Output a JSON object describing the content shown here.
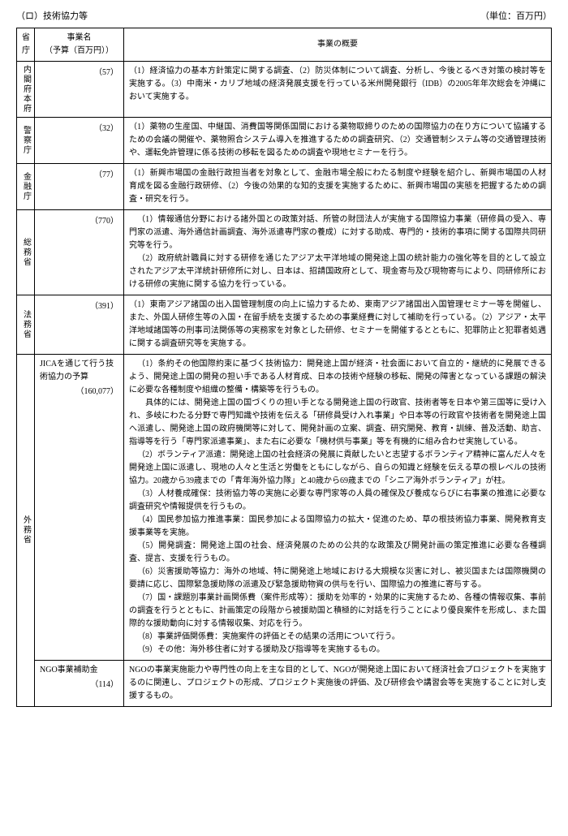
{
  "header": {
    "section_label": "（ロ）技術協力等",
    "unit_label": "（単位：百万円）"
  },
  "columns": {
    "ministry": "省庁",
    "project": "事業名\n（予算（百万円））",
    "summary": "事業の概要"
  },
  "rows": [
    {
      "ministry": "内閣府本府",
      "budget": "（57）",
      "desc": "（1）経済協力の基本方針策定に関する調査、（2）防災体制について調査、分析し、今後とるべき対策の検討等を実施する。（3）中南米・カリブ地域の経済発展支援を行っている米州開発銀行（IDB）の2005年年次総会を沖縄において実施する。"
    },
    {
      "ministry": "警察庁",
      "budget": "（32）",
      "desc": "（1）薬物の生産国、中継国、消費国等関係国間における薬物取締りのための国際協力の在り方について協議するための会議の開催や、薬物照合システム導入を推進するための調査研究、（2）交通管制システム等の交通管理技術や、運転免許管理に係る技術の移転を図るための調査や現地セミナーを行う。"
    },
    {
      "ministry": "金融庁",
      "budget": "（77）",
      "desc": "（1）新興市場国の金融行政担当者を対象として、金融市場全般にわたる制度や経験を紹介し、新興市場国の人材育成を図る金融行政研修、（2）今後の効果的な知的支援を実施するために、新興市場国の実態を把握するための調査・研究を行う。"
    },
    {
      "ministry": "総務省",
      "budget": "（770）",
      "desc_multi": [
        "（1）情報通信分野における諸外国との政策対話、所管の財団法人が実施する国際協力事業（研修員の受入、専門家の派遣、海外通信計画調査、海外派遣専門家の養成）に対する助成、専門的・技術的事項に関する国際共同研究等を行う。",
        "（2）政府統計職員に対する研修を通じたアジア太平洋地域の開発途上国の統計能力の強化等を目的として設立されたアジア太平洋統計研修所に対し、日本は、招請国政府として、現金寄与及び現物寄与により、同研修所における研修の実施に関する協力を行っている。"
      ]
    },
    {
      "ministry": "法務省",
      "budget": "（391）",
      "desc": "（1）東南アジア諸国の出入国管理制度の向上に協力するため、東南アジア諸国出入国管理セミナー等を開催し、また、外国人研修生等の入国・在留手続を支援するための事業経費に対して補助を行っている。（2）アジア・太平洋地域諸国等の刑事司法関係等の実務家を対象とした研修、セミナーを開催するとともに、犯罪防止と犯罪者処遇に関する調査研究等を実施する。"
    },
    {
      "ministry": "外務省",
      "sub": [
        {
          "name": "JICAを通じて行う技術協力の予算",
          "budget": "（160,077）",
          "desc_multi": [
            "（1）条約その他国際約束に基づく技術協力：開発途上国が経済・社会面において自立的・継続的に発展できるよう、開発途上国の開発の担い手である人材育成、日本の技術や経験の移転、開発の障害となっている課題の解決に必要な各種制度や組織の整備・構築等を行うもの。",
            "　具体的には、開発途上国の国づくりの担い手となる開発途上国の行政官、技術者等を日本や第三国等に受け入れ、多岐にわたる分野で専門知識や技術を伝える「研修員受け入れ事業」や日本等の行政官や技術者を開発途上国へ派遣し、開発途上国の政府機関等に対して、開発計画の立案、調査、研究開発、教育・訓練、普及活動、助言、指導等を行う「専門家派遣事業」、また右に必要な「機材供与事業」等を有機的に組み合わせ実施している。",
            "（2）ボランティア派遣：開発途上国の社会経済の発展に貢献したいと志望するボランティア精神に富んだ人々を開発途上国に派遣し、現地の人々と生活と労働をともにしながら、自らの知識と経験を伝える草の根レベルの技術協力。20歳から39歳までの「青年海外協力隊」と40歳から69歳までの「シニア海外ボランティア」が柱。",
            "（3）人材養成確保：技術協力等の実施に必要な専門家等の人員の確保及び養成ならびに右事業の推進に必要な調査研究や情報提供を行うもの。",
            "（4）国民参加協力推進事業：国民参加による国際協力の拡大・促進のため、草の根技術協力事業、開発教育支援事業等を実施。",
            "（5）開発調査：開発途上国の社会、経済発展のための公共的な政策及び開発計画の策定推進に必要な各種調査、提言、支援を行うもの。",
            "（6）災害援助等協力：海外の地域、特に開発途上地域における大規模な災害に対し、被災国または国際機関の要請に応じ、国際緊急援助隊の派遣及び緊急援助物資の供与を行い、国際協力の推進に寄与する。",
            "（7）国・課題別事業計画関係費（案件形成等）：援助を効率的・効果的に実施するため、各種の情報収集、事前の調査を行うとともに、計画策定の段階から被援助国と積極的に対話を行うことにより優良案件を形成し、また国際的な援助動向に対する情報収集、対応を行う。",
            "（8）事業評価関係費：実施案件の評価とその結果の活用について行う。",
            "（9）その他：海外移住者に対する援助及び指導等を実施するもの。"
          ]
        },
        {
          "name": "NGO事業補助金",
          "budget": "（114）",
          "desc": "NGOの事業実施能力や専門性の向上を主な目的として、NGOが開発途上国において経済社会プロジェクトを実施するのに関連し、プロジェクトの形成、プロジェクト実施後の評価、及び研修会や講習会等を実施することに対し支援するもの。"
        }
      ]
    }
  ]
}
